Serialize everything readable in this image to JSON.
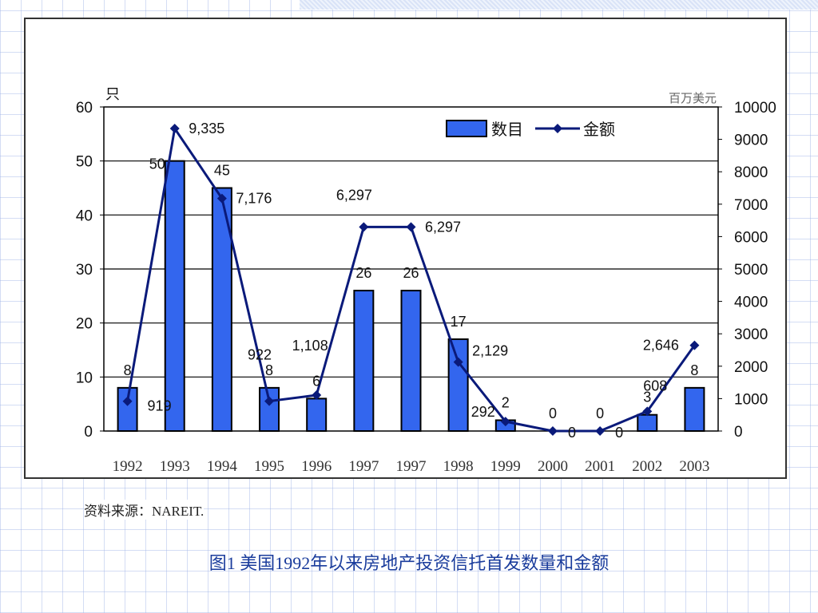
{
  "source_text": "资料来源：NAREIT.",
  "caption": "图1 美国1992年以来房地产投资信托首发数量和金额",
  "colors": {
    "bar_fill": "#3366ee",
    "bar_stroke": "#000000",
    "line": "#0a1a7a",
    "frame": "#333333",
    "caption": "#1a3c9c"
  },
  "chart_data": {
    "type": "bar",
    "title": "",
    "categories": [
      "1992",
      "1993",
      "1994",
      "1995",
      "1996",
      "1997",
      "1997",
      "1998",
      "1999",
      "2000",
      "2001",
      "2002",
      "2003"
    ],
    "left_axis": {
      "unit_label": "只",
      "min": 0,
      "max": 60,
      "ticks": [
        0,
        10,
        20,
        30,
        40,
        50,
        60
      ]
    },
    "right_axis": {
      "unit_label": "百万美元",
      "min": 0,
      "max": 10000,
      "ticks": [
        0,
        1000,
        2000,
        3000,
        4000,
        5000,
        6000,
        7000,
        8000,
        9000,
        10000
      ]
    },
    "grid": true,
    "legend_position": "top-right",
    "series": [
      {
        "name": "数目",
        "type": "bar",
        "axis": "left",
        "values": [
          8,
          50,
          45,
          8,
          6,
          26,
          26,
          17,
          2,
          0,
          0,
          3,
          8
        ],
        "labels": [
          "8",
          "50",
          "45",
          "8",
          "6",
          "26",
          "26",
          "17",
          "2",
          "0",
          "0",
          "3",
          "8"
        ]
      },
      {
        "name": "金额",
        "type": "line",
        "axis": "right",
        "values": [
          919,
          9335,
          7176,
          922,
          1108,
          6297,
          6297,
          2129,
          292,
          0,
          0,
          608,
          2646
        ],
        "labels": [
          "919",
          "9,335",
          "7,176",
          "922",
          "1,108",
          "6,297",
          "6,297",
          "2,129",
          "292",
          "0",
          "0",
          "608",
          "2,646"
        ]
      }
    ]
  }
}
